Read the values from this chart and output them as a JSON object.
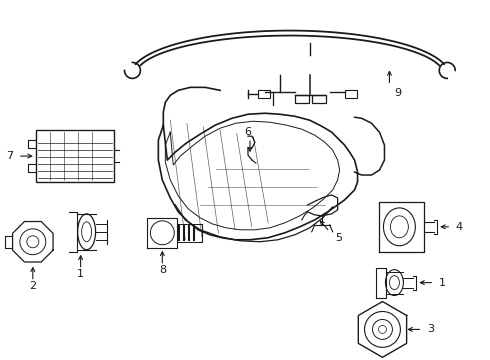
{
  "background_color": "#ffffff",
  "line_color": "#1a1a1a",
  "fig_width": 4.9,
  "fig_height": 3.6,
  "dpi": 100,
  "wire_color": "#1a1a1a",
  "label_fontsize": 7.5,
  "arrow_fontsize": 7.5
}
